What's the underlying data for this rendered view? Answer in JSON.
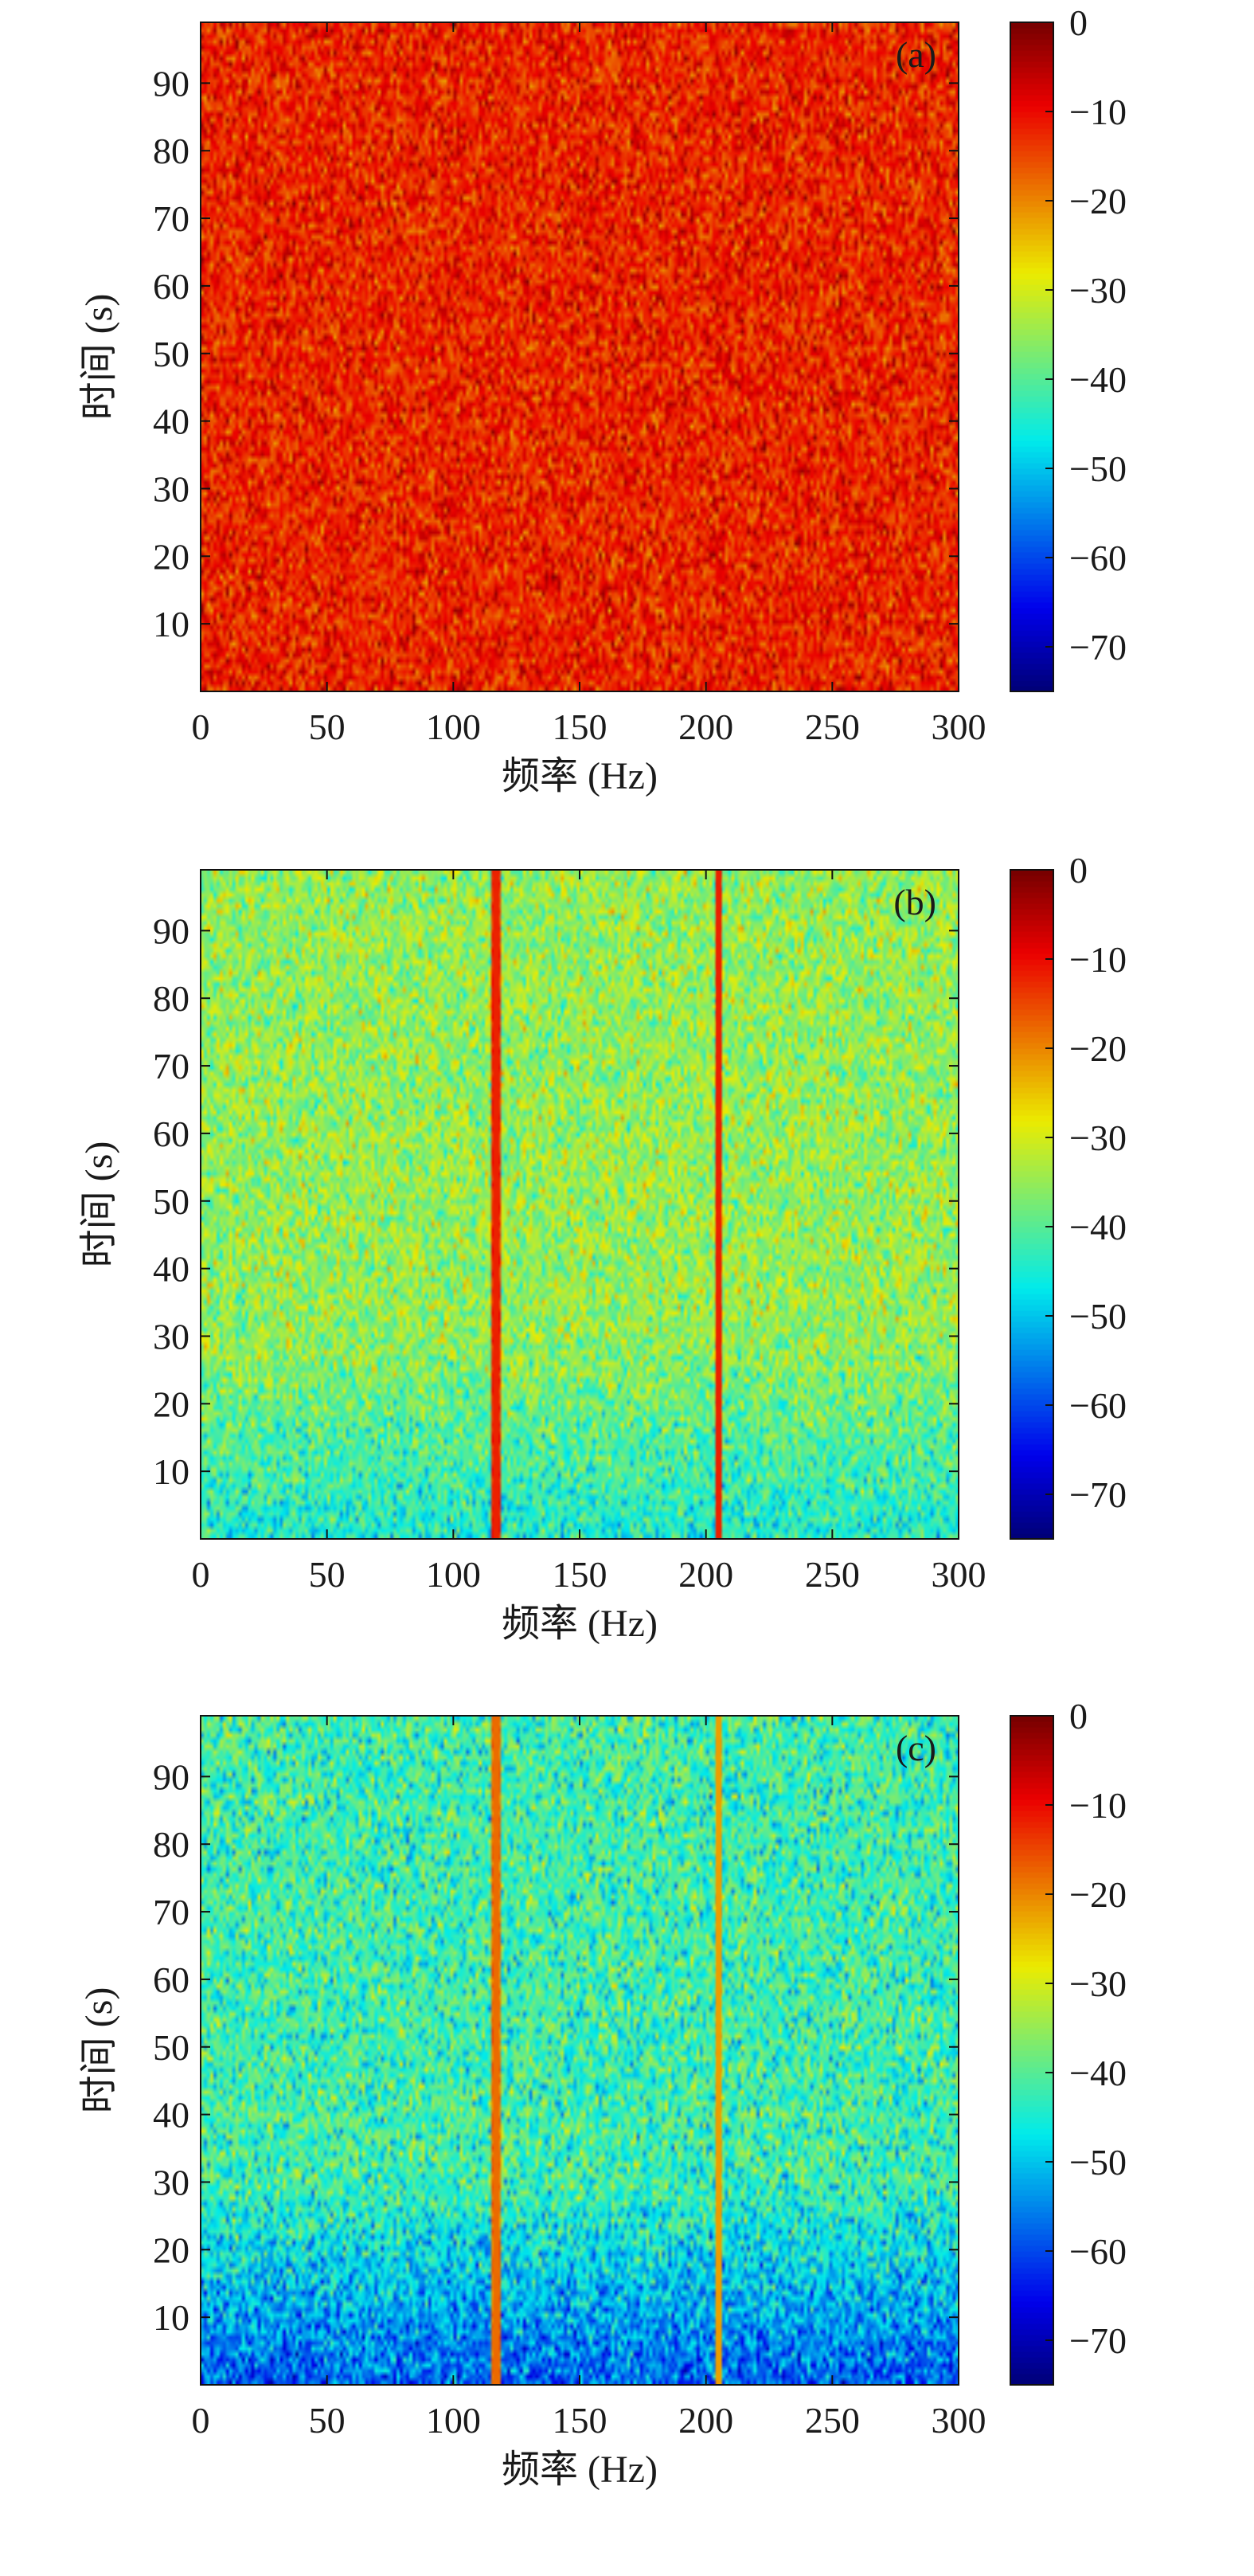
{
  "chart_data": [
    {
      "type": "heatmap",
      "panel_label": "(a)",
      "xlabel": "频率 (Hz)",
      "ylabel": "时间 (s)",
      "xlim": [
        0,
        300
      ],
      "ylim": [
        0,
        99
      ],
      "x_ticks": [
        0,
        50,
        100,
        150,
        200,
        250,
        300
      ],
      "y_ticks": [
        10,
        20,
        30,
        40,
        50,
        60,
        70,
        80,
        90
      ],
      "colorbar": {
        "min": -75,
        "max": 0,
        "ticks": [
          0,
          -10,
          -20,
          -30,
          -40,
          -50,
          -60,
          -70
        ]
      },
      "background_level_db": -12,
      "background_level_db_at_t0": -12,
      "noise_spread_db": 5,
      "lines": []
    },
    {
      "type": "heatmap",
      "panel_label": "(b)",
      "xlabel": "频率 (Hz)",
      "ylabel": "时间 (s)",
      "xlim": [
        0,
        300
      ],
      "ylim": [
        0,
        99
      ],
      "x_ticks": [
        0,
        50,
        100,
        150,
        200,
        250,
        300
      ],
      "y_ticks": [
        10,
        20,
        30,
        40,
        50,
        60,
        70,
        80,
        90
      ],
      "colorbar": {
        "min": -75,
        "max": 0,
        "ticks": [
          0,
          -10,
          -20,
          -30,
          -40,
          -50,
          -60,
          -70
        ]
      },
      "background_level_db": -35,
      "background_level_db_at_t0": -45,
      "noise_spread_db": 6,
      "lines": [
        {
          "frequency_hz": 117,
          "level_db": -12
        },
        {
          "frequency_hz": 205,
          "level_db": -12
        }
      ]
    },
    {
      "type": "heatmap",
      "panel_label": "(c)",
      "xlabel": "频率 (Hz)",
      "ylabel": "时间 (s)",
      "xlim": [
        0,
        300
      ],
      "ylim": [
        0,
        99
      ],
      "x_ticks": [
        0,
        50,
        100,
        150,
        200,
        250,
        300
      ],
      "y_ticks": [
        10,
        20,
        30,
        40,
        50,
        60,
        70,
        80,
        90
      ],
      "colorbar": {
        "min": -75,
        "max": 0,
        "ticks": [
          0,
          -10,
          -20,
          -30,
          -40,
          -50,
          -60,
          -70
        ]
      },
      "background_level_db": -42,
      "background_level_db_at_t0": -58,
      "noise_spread_db": 7,
      "lines": [
        {
          "frequency_hz": 117,
          "level_db": -18
        },
        {
          "frequency_hz": 205,
          "level_db": -22
        }
      ]
    }
  ]
}
